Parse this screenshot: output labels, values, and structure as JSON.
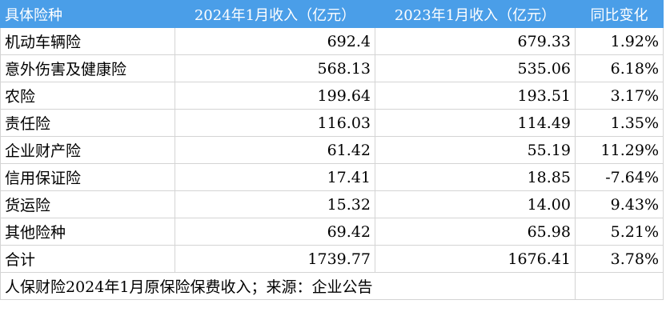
{
  "header": {
    "col_type": "具体险种",
    "col_2024": "2024年1月收入（亿元）",
    "col_2023": "2023年1月收入（亿元）",
    "col_yoy": "同比变化"
  },
  "rows": [
    {
      "name": "机动车辆险",
      "v2024": "692.4",
      "v2023": "679.33",
      "yoy": "1.92%"
    },
    {
      "name": "意外伤害及健康险",
      "v2024": "568.13",
      "v2023": "535.06",
      "yoy": "6.18%"
    },
    {
      "name": "农险",
      "v2024": "199.64",
      "v2023": "193.51",
      "yoy": "3.17%"
    },
    {
      "name": "责任险",
      "v2024": "116.03",
      "v2023": "114.49",
      "yoy": "1.35%"
    },
    {
      "name": "企业财产险",
      "v2024": "61.42",
      "v2023": "55.19",
      "yoy": "11.29%"
    },
    {
      "name": "信用保证险",
      "v2024": "17.41",
      "v2023": "18.85",
      "yoy": "-7.64%"
    },
    {
      "name": "货运险",
      "v2024": "15.32",
      "v2023": "14.00",
      "yoy": "9.43%"
    },
    {
      "name": "其他险种",
      "v2024": "69.42",
      "v2023": "65.98",
      "yoy": "5.21%"
    },
    {
      "name": "合计",
      "v2024": "1739.77",
      "v2023": "1676.41",
      "yoy": "3.78%"
    }
  ],
  "footer": {
    "note": "人保财险2024年1月原保险保费收入；来源：企业公告"
  }
}
